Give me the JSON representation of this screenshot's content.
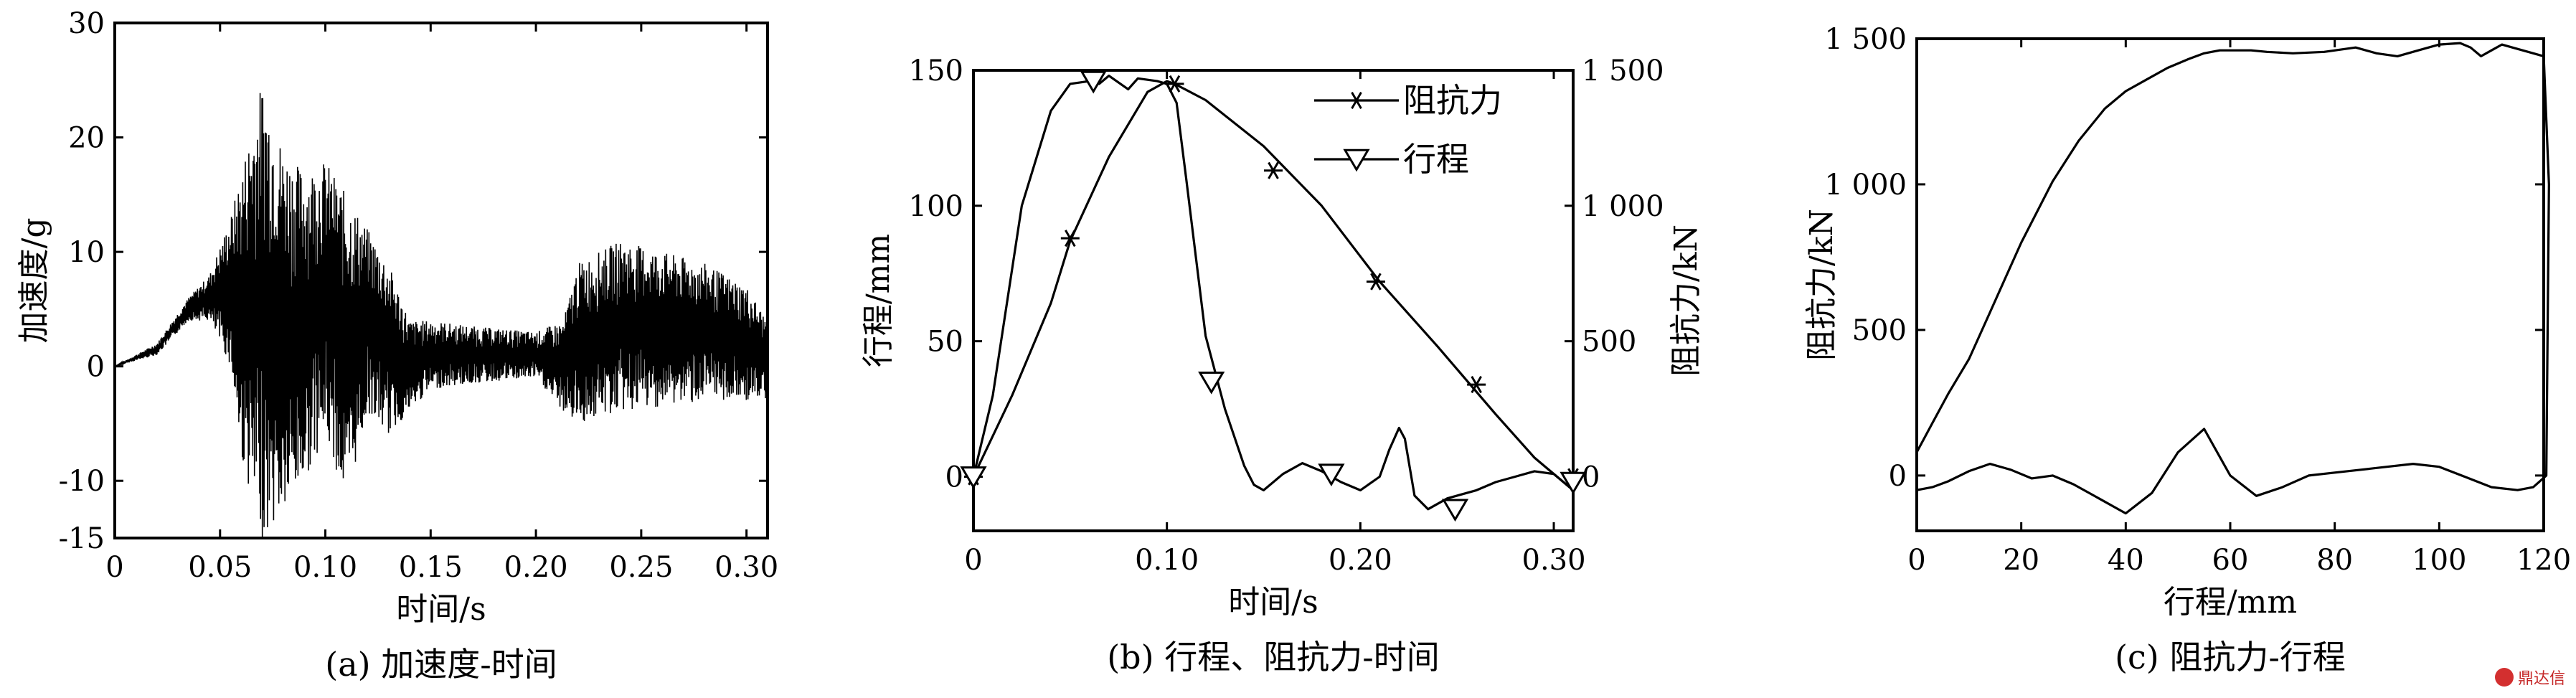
{
  "watermark": "鼎达信",
  "chart_data": [
    {
      "id": "a",
      "type": "line",
      "caption": "(a) 加速度-时间",
      "xlabel": "时间/s",
      "ylabel": "加速度/g",
      "xlim": [
        0,
        0.31
      ],
      "ylim": [
        -15,
        30
      ],
      "xticks": [
        0,
        0.05,
        0.1,
        0.15,
        0.2,
        0.25,
        0.3
      ],
      "xtick_labels": [
        "0",
        "0.05",
        "0.10",
        "0.15",
        "0.20",
        "0.25",
        "0.30"
      ],
      "yticks": [
        -15,
        -10,
        0,
        10,
        20,
        30
      ],
      "ytick_labels": [
        "-15",
        "-10",
        "0",
        "10",
        "20",
        "30"
      ],
      "grid": false,
      "series": [
        {
          "envelope": {
            "t": [
              0,
              0.02,
              0.035,
              0.045,
              0.055,
              0.06,
              0.07,
              0.08,
              0.09,
              0.1,
              0.11,
              0.12,
              0.13,
              0.14,
              0.15,
              0.17,
              0.2,
              0.213,
              0.22,
              0.24,
              0.26,
              0.28,
              0.3,
              0.31
            ],
            "upper": [
              0,
              2,
              6,
              8,
              13,
              17,
              25,
              19,
              17,
              18,
              15,
              12,
              9,
              4,
              4,
              3.5,
              3,
              4,
              9,
              11,
              10,
              9,
              7,
              4
            ],
            "lower": [
              0,
              1,
              4,
              4,
              0,
              -8,
              -15,
              -13,
              -10,
              -6,
              -12,
              -4,
              -6,
              -4,
              -2,
              -1.5,
              -1,
              -4,
              -5,
              -4,
              -3.5,
              -3,
              -3,
              -3
            ]
          }
        }
      ]
    },
    {
      "id": "b",
      "type": "line",
      "caption": "(b) 行程、阻抗力-时间",
      "xlabel": "时间/s",
      "ylabel": "行程/mm",
      "y2label": "阻抗力/kN",
      "xlim": [
        0,
        0.31
      ],
      "ylim": [
        -20,
        150
      ],
      "y2lim": [
        -200,
        1500
      ],
      "xticks": [
        0,
        0.1,
        0.2,
        0.3
      ],
      "xtick_labels": [
        "0",
        "0.10",
        "0.20",
        "0.30"
      ],
      "yticks": [
        0,
        50,
        100,
        150
      ],
      "ytick_labels": [
        "0",
        "50",
        "100",
        "150"
      ],
      "y2ticks": [
        0,
        500,
        1000,
        1500
      ],
      "y2tick_labels": [
        "0",
        "500",
        "1 000",
        "1 500"
      ],
      "legend_position": "top-right",
      "grid": false,
      "series": [
        {
          "name": "阻抗力",
          "axis": "right",
          "marker": "asterisk",
          "x": [
            0,
            0.02,
            0.04,
            0.05,
            0.07,
            0.09,
            0.1,
            0.104,
            0.12,
            0.15,
            0.18,
            0.21,
            0.24,
            0.27,
            0.29,
            0.31
          ],
          "y": [
            0,
            300,
            640,
            870,
            1180,
            1420,
            1460,
            1450,
            1390,
            1220,
            1000,
            720,
            480,
            230,
            70,
            -50
          ],
          "markers_x": [
            0,
            0.05,
            0.104,
            0.155,
            0.208,
            0.26,
            0.31
          ],
          "markers_y": [
            0,
            880,
            1450,
            1130,
            720,
            340,
            0
          ]
        },
        {
          "name": "行程",
          "axis": "left",
          "marker": "triangle-down",
          "x": [
            0,
            0.01,
            0.025,
            0.04,
            0.05,
            0.06,
            0.065,
            0.07,
            0.08,
            0.085,
            0.095,
            0.1,
            0.105,
            0.11,
            0.12,
            0.13,
            0.14,
            0.145,
            0.15,
            0.16,
            0.17,
            0.18,
            0.19,
            0.2,
            0.21,
            0.215,
            0.22,
            0.223,
            0.228,
            0.235,
            0.245,
            0.26,
            0.27,
            0.28,
            0.29,
            0.3,
            0.31
          ],
          "y": [
            0,
            30,
            100,
            135,
            145,
            146,
            145,
            148,
            143,
            147,
            146,
            145,
            138,
            110,
            52,
            25,
            4,
            -3,
            -5,
            1,
            5,
            2,
            -2,
            -5,
            0,
            10,
            18,
            14,
            -7,
            -12,
            -8,
            -5,
            -2,
            0,
            2,
            1,
            -5
          ],
          "markers_x": [
            0,
            0.062,
            0.123,
            0.185,
            0.249,
            0.31
          ],
          "markers_y": [
            0,
            146,
            35,
            1,
            -12,
            -2
          ]
        }
      ]
    },
    {
      "id": "c",
      "type": "line",
      "caption": "(c) 阻抗力-行程",
      "xlabel": "行程/mm",
      "ylabel": "阻抗力/kN",
      "xlim": [
        0,
        120
      ],
      "ylim": [
        -190,
        1500
      ],
      "xticks": [
        0,
        20,
        40,
        60,
        80,
        100,
        120
      ],
      "xtick_labels": [
        "0",
        "20",
        "40",
        "60",
        "80",
        "100",
        "120"
      ],
      "yticks": [
        0,
        500,
        1000,
        1500
      ],
      "ytick_labels": [
        "0",
        "500",
        "1 000",
        "1 500"
      ],
      "grid": false,
      "series": [
        {
          "x": [
            0,
            3,
            6,
            10,
            14,
            17,
            20,
            26,
            31,
            36,
            40,
            44,
            48,
            52,
            55,
            58,
            61,
            64,
            67,
            72,
            78,
            84,
            88,
            92,
            96,
            100,
            104,
            106,
            108,
            110,
            112,
            114,
            118,
            120,
            121,
            120.5,
            118,
            115,
            110,
            105,
            100,
            95,
            90,
            85,
            80,
            75,
            70,
            65,
            60,
            55,
            50,
            45,
            40,
            35,
            30,
            26,
            22,
            18,
            14,
            10,
            6,
            3,
            0
          ],
          "y": [
            80,
            180,
            280,
            400,
            560,
            680,
            800,
            1010,
            1150,
            1260,
            1320,
            1360,
            1400,
            1430,
            1450,
            1460,
            1460,
            1460,
            1455,
            1450,
            1455,
            1470,
            1450,
            1440,
            1460,
            1480,
            1485,
            1470,
            1440,
            1460,
            1480,
            1470,
            1450,
            1440,
            1000,
            0,
            -40,
            -50,
            -40,
            -5,
            30,
            40,
            30,
            20,
            10,
            0,
            -40,
            -70,
            0,
            160,
            80,
            -60,
            -130,
            -80,
            -30,
            0,
            -10,
            20,
            40,
            15,
            -20,
            -40,
            -50
          ]
        }
      ]
    }
  ]
}
